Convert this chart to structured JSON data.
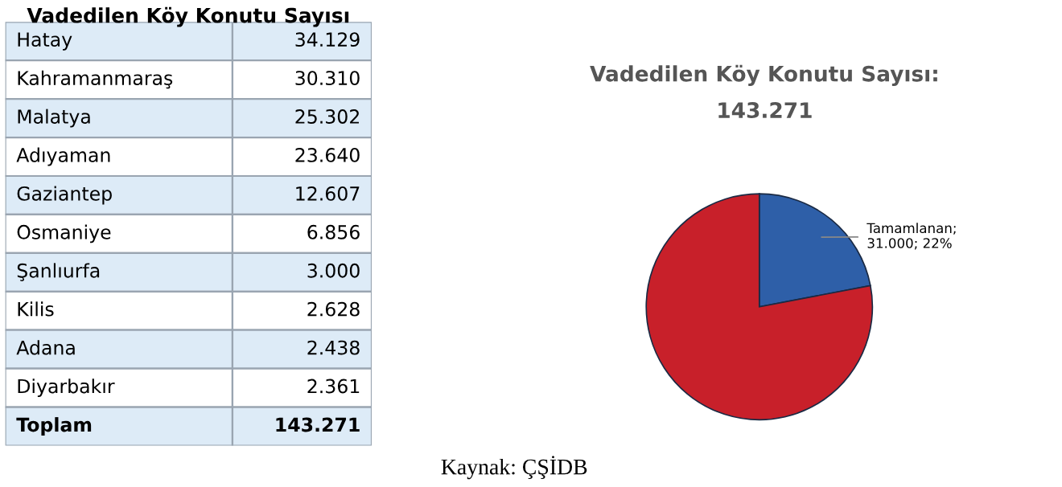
{
  "chart_data": [
    {
      "type": "other",
      "title": "Vadedilen Köy Konutu Sayısı",
      "categories": [
        "Hatay",
        "Kahramanmaraş",
        "Malatya",
        "Adıyaman",
        "Gaziantep",
        "Osmaniye",
        "Şanlıurfa",
        "Kilis",
        "Adana",
        "Diyarbakır",
        "Toplam"
      ],
      "value_labels": [
        "34.129",
        "30.310",
        "25.302",
        "23.640",
        "12.607",
        "6.856",
        "3.000",
        "2.628",
        "2.438",
        "2.361",
        "143.271"
      ]
    },
    {
      "type": "pie",
      "title": "Vadedilen Köy Konutu Sayısı:",
      "subtitle": "143.271",
      "categories": [
        null,
        null
      ],
      "values": [
        22,
        78
      ],
      "colors": [
        "#2e5fa8",
        "#c8202a"
      ],
      "value_labels": [
        "Tamamlanan;\n31.000; 22%",
        null
      ],
      "annotations": [
        "Kaynak: ÇŞİDB"
      ]
    }
  ]
}
